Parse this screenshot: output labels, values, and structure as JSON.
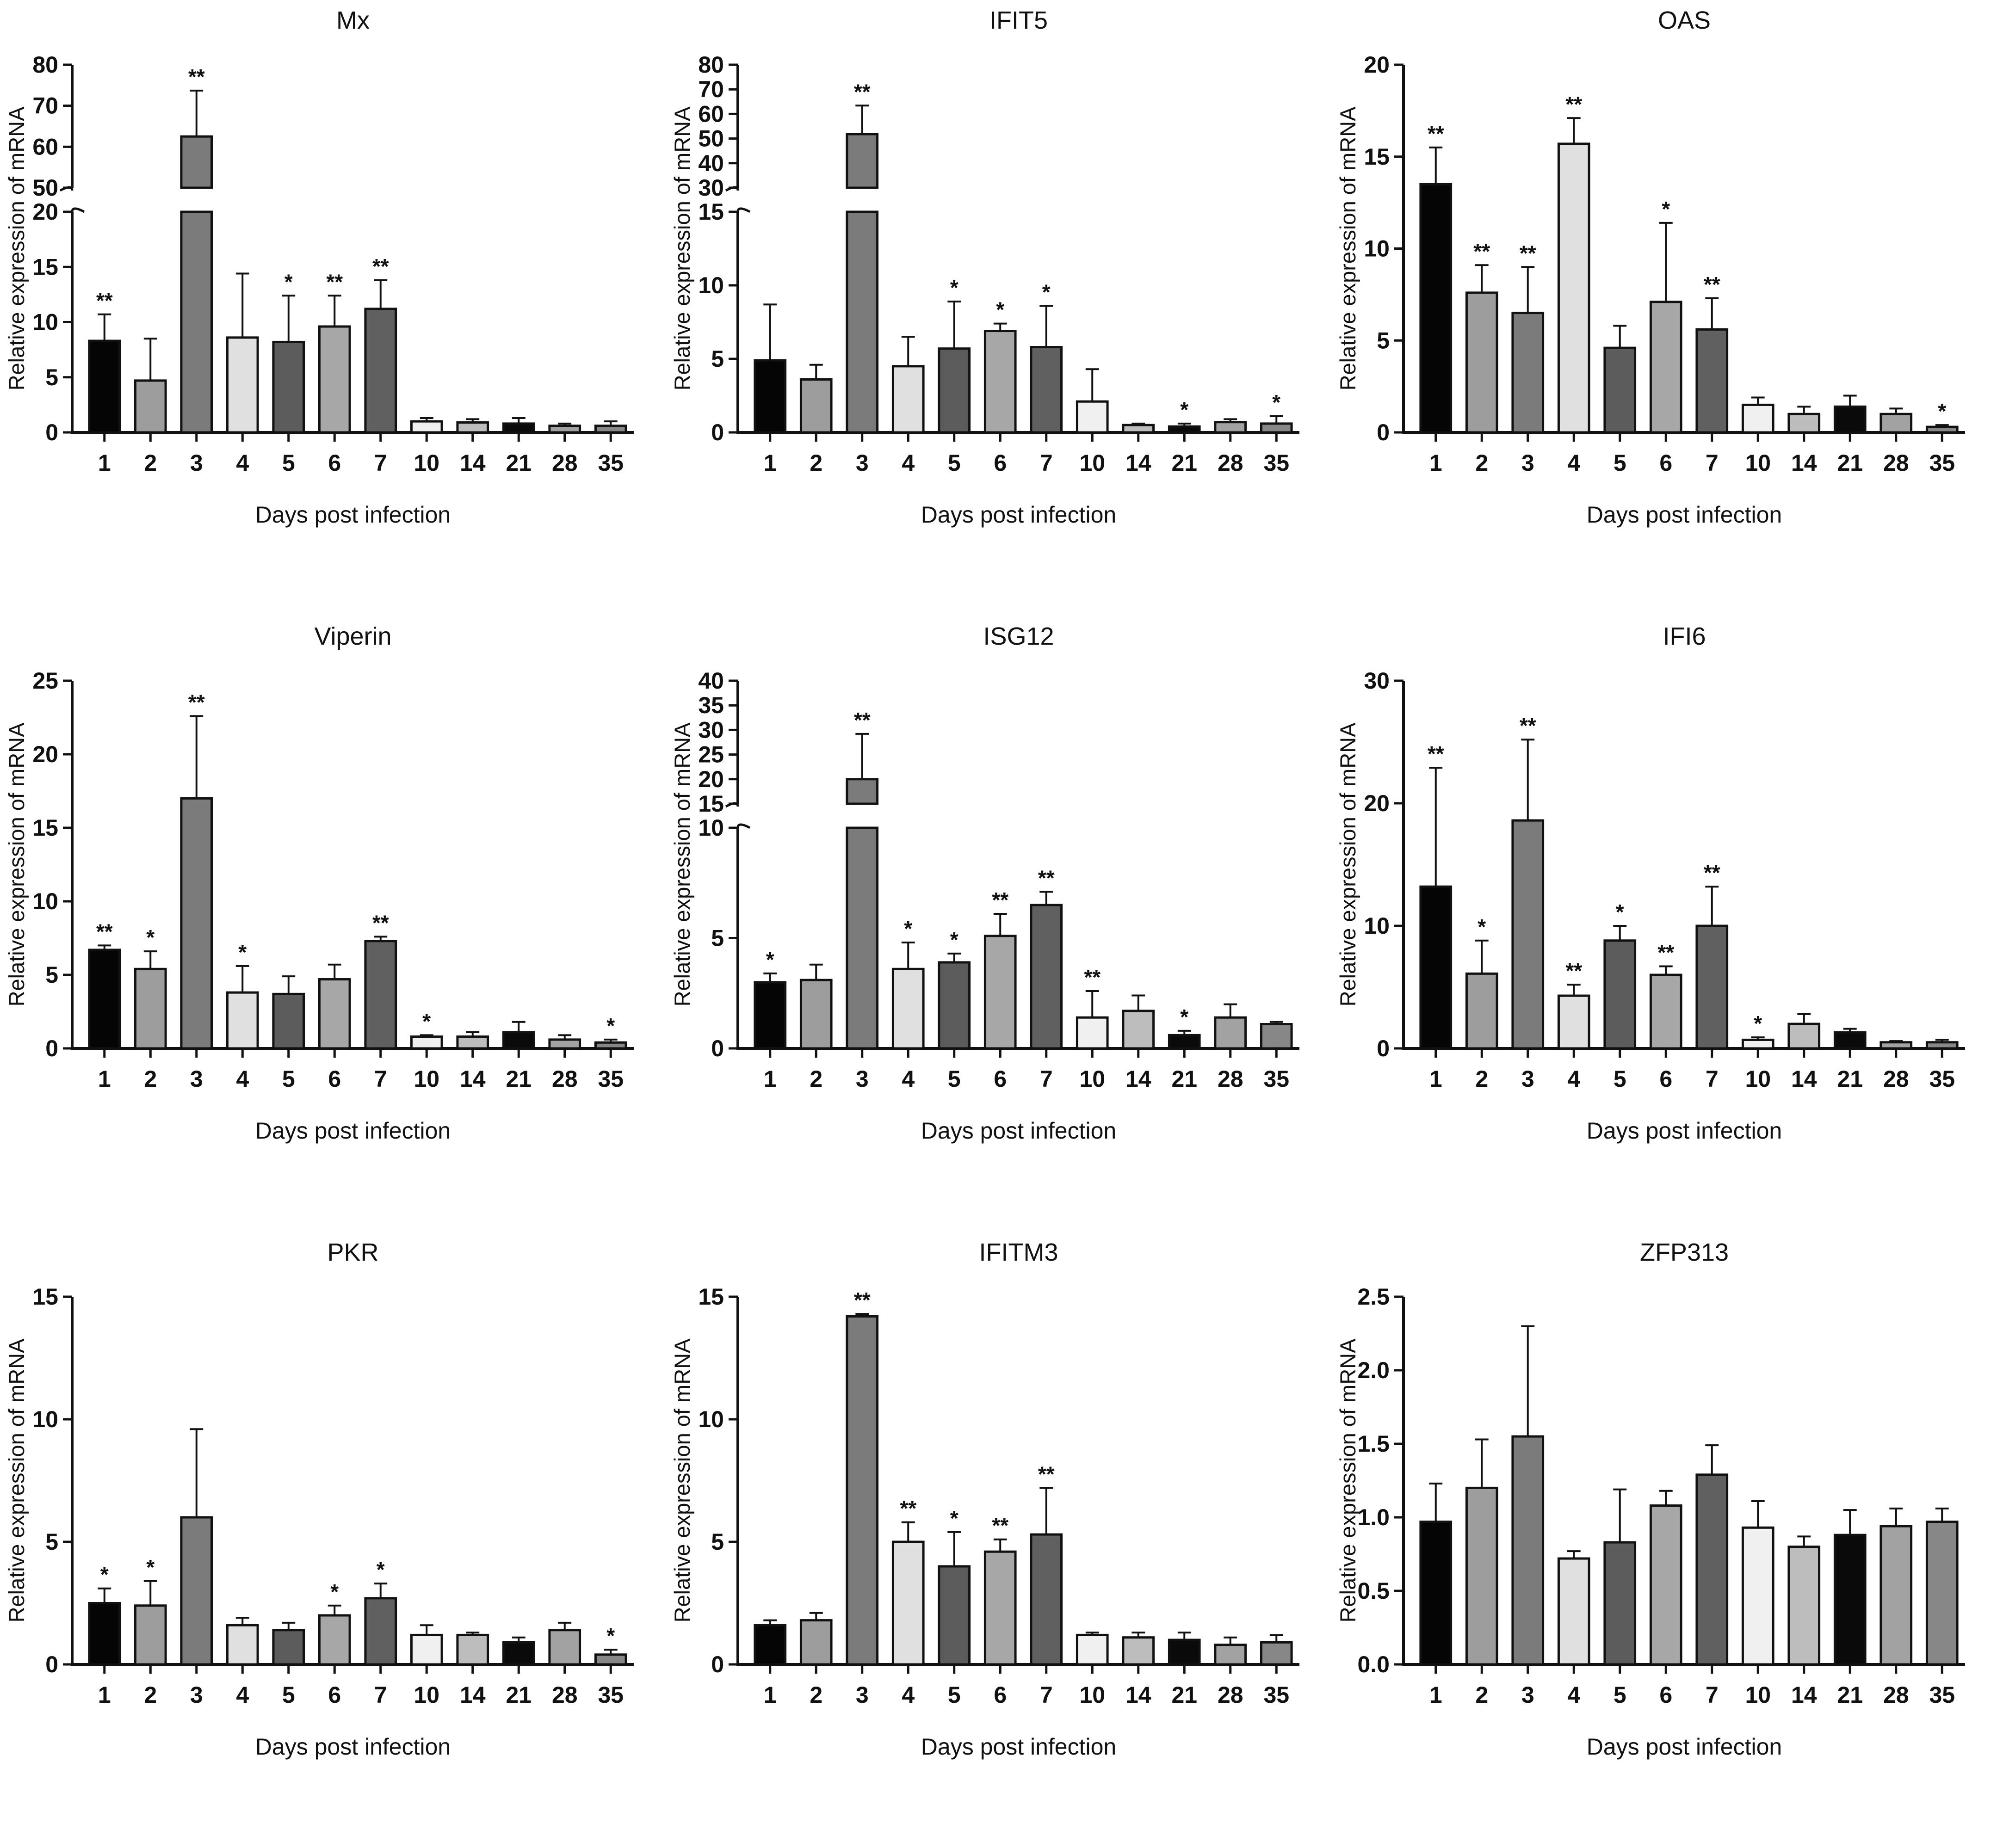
{
  "figure": {
    "description_free": true
  },
  "colors": [
    "#050505",
    "#9d9d9d",
    "#7b7b7b",
    "#e0e0e0",
    "#5c5c5c",
    "#a7a7a7",
    "#606060",
    "#f0f0f0",
    "#bdbdbd",
    "#0a0a0a",
    "#a2a2a2",
    "#878787"
  ],
  "chart_data": [
    {
      "type": "bar",
      "title": "Mx",
      "xlabel": "Days post infection",
      "ylabel": "Relative expression of mRNA",
      "categories": [
        "1",
        "2",
        "3",
        "4",
        "5",
        "6",
        "7",
        "10",
        "14",
        "21",
        "28",
        "35"
      ],
      "values": [
        8.3,
        4.7,
        62.5,
        8.6,
        8.2,
        9.6,
        11.2,
        1.0,
        0.9,
        0.8,
        0.6,
        0.6
      ],
      "errors": [
        2.4,
        3.8,
        11.2,
        5.8,
        4.2,
        2.8,
        2.6,
        0.3,
        0.3,
        0.5,
        0.2,
        0.4
      ],
      "significance": [
        "**",
        "",
        "**",
        "",
        "*",
        "**",
        "**",
        "",
        "",
        "",
        "",
        ""
      ],
      "broken_axis": {
        "lower": [
          0,
          20
        ],
        "upper": [
          50,
          80
        ],
        "lower_ticks": [
          0,
          5,
          10,
          15,
          20
        ],
        "upper_ticks": [
          50,
          60,
          70,
          80
        ]
      }
    },
    {
      "type": "bar",
      "title": "IFIT5",
      "xlabel": "Days post infection",
      "ylabel": "Relative expression of mRNA",
      "categories": [
        "1",
        "2",
        "3",
        "4",
        "5",
        "6",
        "7",
        "10",
        "14",
        "21",
        "28",
        "35"
      ],
      "values": [
        4.9,
        3.6,
        51.8,
        4.5,
        5.7,
        6.9,
        5.8,
        2.1,
        0.5,
        0.4,
        0.7,
        0.6
      ],
      "errors": [
        3.8,
        1.0,
        11.6,
        2.0,
        3.2,
        0.5,
        2.8,
        2.2,
        0.1,
        0.2,
        0.2,
        0.5
      ],
      "significance": [
        "",
        "",
        "**",
        "",
        "*",
        "*",
        "*",
        "",
        "",
        "*",
        "",
        "*"
      ],
      "broken_axis": {
        "lower": [
          0,
          15
        ],
        "upper": [
          30,
          80
        ],
        "lower_ticks": [
          0,
          5,
          10,
          15
        ],
        "upper_ticks": [
          30,
          40,
          50,
          60,
          70,
          80
        ]
      }
    },
    {
      "type": "bar",
      "title": "OAS",
      "xlabel": "Days post infection",
      "ylabel": "Relative expression of mRNA",
      "categories": [
        "1",
        "2",
        "3",
        "4",
        "5",
        "6",
        "7",
        "10",
        "14",
        "21",
        "28",
        "35"
      ],
      "values": [
        13.5,
        7.6,
        6.5,
        15.7,
        4.6,
        7.1,
        5.6,
        1.5,
        1.0,
        1.4,
        1.0,
        0.3
      ],
      "errors": [
        2.0,
        1.5,
        2.5,
        1.4,
        1.2,
        4.3,
        1.7,
        0.4,
        0.4,
        0.6,
        0.3,
        0.1
      ],
      "significance": [
        "**",
        "**",
        "**",
        "**",
        "",
        "*",
        "**",
        "",
        "",
        "",
        "",
        "*"
      ],
      "ylim": [
        0,
        20
      ],
      "yticks": [
        0,
        5,
        10,
        15,
        20
      ]
    },
    {
      "type": "bar",
      "title": "Viperin",
      "xlabel": "Days post infection",
      "ylabel": "Relative expression of mRNA",
      "categories": [
        "1",
        "2",
        "3",
        "4",
        "5",
        "6",
        "7",
        "10",
        "14",
        "21",
        "28",
        "35"
      ],
      "values": [
        6.7,
        5.4,
        17.0,
        3.8,
        3.7,
        4.7,
        7.3,
        0.8,
        0.8,
        1.1,
        0.6,
        0.4
      ],
      "errors": [
        0.3,
        1.2,
        5.6,
        1.8,
        1.2,
        1.0,
        0.3,
        0.1,
        0.3,
        0.7,
        0.3,
        0.2
      ],
      "significance": [
        "**",
        "*",
        "**",
        "*",
        "",
        "",
        "**",
        "*",
        "",
        "",
        "",
        "*"
      ],
      "ylim": [
        0,
        25
      ],
      "yticks": [
        0,
        5,
        10,
        15,
        20,
        25
      ]
    },
    {
      "type": "bar",
      "title": "ISG12",
      "xlabel": "Days post infection",
      "ylabel": "Relative expression of mRNA",
      "categories": [
        "1",
        "2",
        "3",
        "4",
        "5",
        "6",
        "7",
        "10",
        "14",
        "21",
        "28",
        "35"
      ],
      "values": [
        3.0,
        3.1,
        20.0,
        3.6,
        3.9,
        5.1,
        6.5,
        1.4,
        1.7,
        0.6,
        1.4,
        1.1
      ],
      "errors": [
        0.4,
        0.7,
        9.2,
        1.2,
        0.4,
        1.0,
        0.6,
        1.2,
        0.7,
        0.2,
        0.6,
        0.1
      ],
      "significance": [
        "*",
        "",
        "**",
        "*",
        "*",
        "**",
        "**",
        "**",
        "",
        "*",
        "",
        ""
      ],
      "broken_axis": {
        "lower": [
          0,
          10
        ],
        "upper": [
          15,
          40
        ],
        "lower_ticks": [
          0,
          5,
          10
        ],
        "upper_ticks": [
          15,
          20,
          25,
          30,
          35,
          40
        ]
      }
    },
    {
      "type": "bar",
      "title": "IFI6",
      "xlabel": "Days post infection",
      "ylabel": "Relative expression of mRNA",
      "categories": [
        "1",
        "2",
        "3",
        "4",
        "5",
        "6",
        "7",
        "10",
        "14",
        "21",
        "28",
        "35"
      ],
      "values": [
        13.2,
        6.1,
        18.6,
        4.3,
        8.8,
        6.0,
        10.0,
        0.7,
        2.0,
        1.3,
        0.5,
        0.5
      ],
      "errors": [
        9.7,
        2.7,
        6.6,
        0.9,
        1.2,
        0.7,
        3.2,
        0.2,
        0.8,
        0.3,
        0.1,
        0.2
      ],
      "significance": [
        "**",
        "*",
        "**",
        "**",
        "*",
        "**",
        "**",
        "*",
        "",
        "",
        "",
        ""
      ],
      "ylim": [
        0,
        30
      ],
      "yticks": [
        0,
        10,
        20,
        30
      ]
    },
    {
      "type": "bar",
      "title": "PKR",
      "xlabel": "Days post infection",
      "ylabel": "Relative expression of mRNA",
      "categories": [
        "1",
        "2",
        "3",
        "4",
        "5",
        "6",
        "7",
        "10",
        "14",
        "21",
        "28",
        "35"
      ],
      "values": [
        2.5,
        2.4,
        6.0,
        1.6,
        1.4,
        2.0,
        2.7,
        1.2,
        1.2,
        0.9,
        1.4,
        0.4
      ],
      "errors": [
        0.6,
        1.0,
        3.6,
        0.3,
        0.3,
        0.4,
        0.6,
        0.4,
        0.1,
        0.2,
        0.3,
        0.2
      ],
      "significance": [
        "*",
        "*",
        "",
        "",
        "",
        "*",
        "*",
        "",
        "",
        "",
        "",
        "*"
      ],
      "ylim": [
        0,
        15
      ],
      "yticks": [
        0,
        5,
        10,
        15
      ]
    },
    {
      "type": "bar",
      "title": "IFITM3",
      "xlabel": "Days post infection",
      "ylabel": "Relative expression of mRNA",
      "categories": [
        "1",
        "2",
        "3",
        "4",
        "5",
        "6",
        "7",
        "10",
        "14",
        "21",
        "28",
        "35"
      ],
      "values": [
        1.6,
        1.8,
        14.2,
        5.0,
        4.0,
        4.6,
        5.3,
        1.2,
        1.1,
        1.0,
        0.8,
        0.9
      ],
      "errors": [
        0.2,
        0.3,
        0.1,
        0.8,
        1.4,
        0.5,
        1.9,
        0.1,
        0.2,
        0.3,
        0.3,
        0.3
      ],
      "significance": [
        "",
        "",
        "**",
        "**",
        "*",
        "**",
        "**",
        "",
        "",
        "",
        "",
        ""
      ],
      "ylim": [
        0,
        15
      ],
      "yticks": [
        0,
        5,
        10,
        15
      ]
    },
    {
      "type": "bar",
      "title": "ZFP313",
      "xlabel": "Days post infection",
      "ylabel": "Relative expression of mRNA",
      "categories": [
        "1",
        "2",
        "3",
        "4",
        "5",
        "6",
        "7",
        "10",
        "14",
        "21",
        "28",
        "35"
      ],
      "values": [
        0.97,
        1.2,
        1.55,
        0.72,
        0.83,
        1.08,
        1.29,
        0.93,
        0.8,
        0.88,
        0.94,
        0.97
      ],
      "errors": [
        0.26,
        0.33,
        0.75,
        0.05,
        0.36,
        0.1,
        0.2,
        0.18,
        0.07,
        0.17,
        0.12,
        0.09
      ],
      "significance": [
        "",
        "",
        "",
        "",
        "",
        "",
        "",
        "",
        "",
        "",
        "",
        ""
      ],
      "ylim": [
        0,
        2.5
      ],
      "yticks": [
        0.0,
        0.5,
        1.0,
        1.5,
        2.0,
        2.5
      ],
      "tick_decimals": 1
    }
  ]
}
